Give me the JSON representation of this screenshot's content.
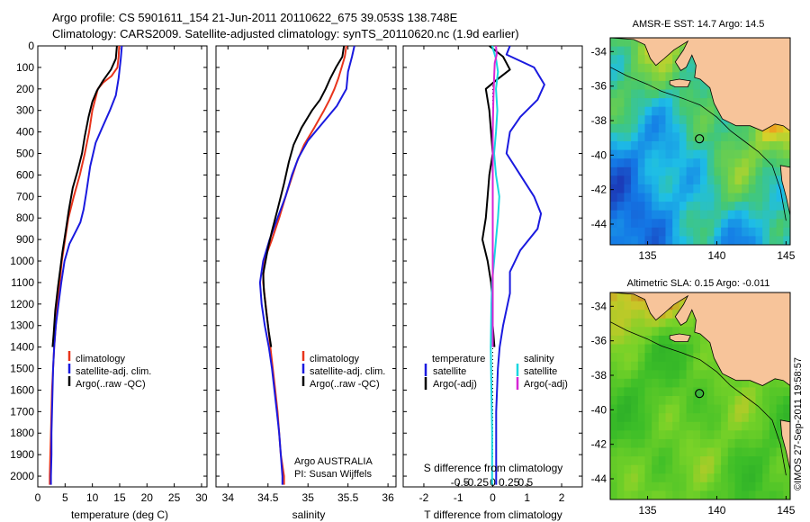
{
  "title_line1": "Argo profile: CS 5901611_154 21-Jun-2011 20110622_675 39.053S 138.748E",
  "title_line2": "Climatology: CARS2009. Satellite-adjusted climatology: synTS_20110620.nc (1.9d earlier)",
  "credit": "©IMOS 27-Sep-2011 19:58:57",
  "colors": {
    "climatology": "#e8341c",
    "satellite": "#1a1adf",
    "argo": "#000000",
    "sal_satellite": "#19d7e0",
    "sal_argo": "#d625d6",
    "land": "#f7c49a"
  },
  "chart_data": [
    {
      "type": "line",
      "xlabel": "temperature (deg C)",
      "xlim": [
        0,
        31
      ],
      "xticks": [
        "0",
        "5",
        "10",
        "15",
        "20",
        "25",
        "30"
      ],
      "xtick_values": [
        0,
        5,
        10,
        15,
        20,
        25,
        30
      ],
      "ylim": [
        0,
        2050
      ],
      "y_reversed": true,
      "yticks": [
        "0",
        "100",
        "200",
        "300",
        "400",
        "500",
        "600",
        "700",
        "800",
        "900",
        "1000",
        "1100",
        "1200",
        "1300",
        "1400",
        "1500",
        "1600",
        "1700",
        "1800",
        "1900",
        "2000"
      ],
      "ytick_values": [
        0,
        100,
        200,
        300,
        400,
        500,
        600,
        700,
        800,
        900,
        1000,
        1100,
        1200,
        1300,
        1400,
        1500,
        1600,
        1700,
        1800,
        1900,
        2000
      ],
      "legend": [
        "climatology",
        "satellite-adj. clim.",
        "Argo(..raw -QC)"
      ],
      "legend_position": "lower-middle",
      "series": [
        {
          "name": "climatology",
          "color": "climatology",
          "points": [
            [
              14.9,
              0
            ],
            [
              14.8,
              50
            ],
            [
              14.6,
              100
            ],
            [
              13.5,
              140
            ],
            [
              12.0,
              170
            ],
            [
              11.0,
              200
            ],
            [
              10.5,
              250
            ],
            [
              10.0,
              300
            ],
            [
              9.4,
              400
            ],
            [
              8.6,
              500
            ],
            [
              7.7,
              600
            ],
            [
              6.6,
              700
            ],
            [
              5.6,
              800
            ],
            [
              5.0,
              900
            ],
            [
              4.4,
              1000
            ],
            [
              4.0,
              1100
            ],
            [
              3.6,
              1200
            ],
            [
              3.3,
              1300
            ],
            [
              3.0,
              1400
            ],
            [
              2.8,
              1500
            ],
            [
              2.6,
              1600
            ],
            [
              2.5,
              1700
            ],
            [
              2.4,
              1800
            ],
            [
              2.3,
              1900
            ],
            [
              2.2,
              2000
            ],
            [
              2.2,
              2040
            ]
          ]
        },
        {
          "name": "satellite-adj. clim.",
          "color": "satellite",
          "points": [
            [
              15.4,
              0
            ],
            [
              15.2,
              60
            ],
            [
              14.8,
              150
            ],
            [
              14.3,
              230
            ],
            [
              13.2,
              300
            ],
            [
              11.8,
              380
            ],
            [
              10.6,
              450
            ],
            [
              9.6,
              560
            ],
            [
              8.9,
              680
            ],
            [
              8.4,
              760
            ],
            [
              7.8,
              820
            ],
            [
              7.0,
              860
            ],
            [
              5.8,
              920
            ],
            [
              4.9,
              1000
            ],
            [
              4.3,
              1100
            ],
            [
              3.8,
              1200
            ],
            [
              3.3,
              1300
            ],
            [
              3.0,
              1400
            ],
            [
              2.8,
              1500
            ],
            [
              2.7,
              1600
            ],
            [
              2.6,
              1700
            ],
            [
              2.5,
              1800
            ],
            [
              2.5,
              1900
            ],
            [
              2.4,
              2000
            ],
            [
              2.4,
              2040
            ]
          ]
        },
        {
          "name": "Argo(..raw -QC)",
          "color": "argo",
          "points": [
            [
              14.5,
              0
            ],
            [
              14.3,
              60
            ],
            [
              13.4,
              110
            ],
            [
              12.0,
              160
            ],
            [
              10.8,
              210
            ],
            [
              10.0,
              260
            ],
            [
              9.3,
              330
            ],
            [
              8.6,
              420
            ],
            [
              8.1,
              500
            ],
            [
              7.3,
              580
            ],
            [
              6.4,
              660
            ],
            [
              5.7,
              760
            ],
            [
              5.0,
              880
            ],
            [
              4.5,
              960
            ],
            [
              4.1,
              1040
            ],
            [
              3.7,
              1120
            ],
            [
              3.2,
              1230
            ],
            [
              2.9,
              1340
            ],
            [
              2.7,
              1400
            ]
          ]
        }
      ]
    },
    {
      "type": "line",
      "xlabel": "salinity",
      "xlim": [
        33.85,
        36.1
      ],
      "xticks": [
        "34",
        "34.5",
        "35",
        "35.5",
        "36"
      ],
      "xtick_values": [
        34,
        34.5,
        35,
        35.5,
        36
      ],
      "ylim": [
        0,
        2050
      ],
      "y_reversed": true,
      "legend": [
        "climatology",
        "satellite-adj. clim.",
        "Argo(..raw -QC)"
      ],
      "legend_position": "lower-middle",
      "annotation": [
        "Argo AUSTRALIA",
        "PI: Susan Wijffels"
      ],
      "series": [
        {
          "name": "climatology",
          "color": "climatology",
          "points": [
            [
              35.48,
              0
            ],
            [
              35.46,
              50
            ],
            [
              35.42,
              100
            ],
            [
              35.38,
              150
            ],
            [
              35.33,
              200
            ],
            [
              35.27,
              250
            ],
            [
              35.2,
              300
            ],
            [
              35.08,
              380
            ],
            [
              34.95,
              460
            ],
            [
              34.86,
              540
            ],
            [
              34.79,
              620
            ],
            [
              34.72,
              700
            ],
            [
              34.64,
              800
            ],
            [
              34.55,
              900
            ],
            [
              34.45,
              1000
            ],
            [
              34.44,
              1100
            ],
            [
              34.47,
              1200
            ],
            [
              34.5,
              1300
            ],
            [
              34.53,
              1400
            ],
            [
              34.56,
              1500
            ],
            [
              34.59,
              1600
            ],
            [
              34.62,
              1700
            ],
            [
              34.64,
              1800
            ],
            [
              34.66,
              1900
            ],
            [
              34.7,
              2000
            ],
            [
              34.7,
              2040
            ]
          ]
        },
        {
          "name": "satellite-adj. clim.",
          "color": "satellite",
          "points": [
            [
              35.58,
              0
            ],
            [
              35.55,
              50
            ],
            [
              35.5,
              120
            ],
            [
              35.48,
              200
            ],
            [
              35.36,
              280
            ],
            [
              35.18,
              360
            ],
            [
              35.0,
              440
            ],
            [
              34.88,
              520
            ],
            [
              34.8,
              600
            ],
            [
              34.72,
              700
            ],
            [
              34.62,
              800
            ],
            [
              34.52,
              900
            ],
            [
              34.44,
              1000
            ],
            [
              34.4,
              1100
            ],
            [
              34.42,
              1200
            ],
            [
              34.46,
              1300
            ],
            [
              34.51,
              1400
            ],
            [
              34.55,
              1500
            ],
            [
              34.58,
              1600
            ],
            [
              34.61,
              1700
            ],
            [
              34.64,
              1800
            ],
            [
              34.66,
              1900
            ],
            [
              34.68,
              2000
            ],
            [
              34.68,
              2040
            ]
          ]
        },
        {
          "name": "Argo(..raw -QC)",
          "color": "argo",
          "points": [
            [
              35.45,
              0
            ],
            [
              35.43,
              50
            ],
            [
              35.35,
              100
            ],
            [
              35.28,
              150
            ],
            [
              35.22,
              200
            ],
            [
              35.15,
              250
            ],
            [
              35.05,
              300
            ],
            [
              34.92,
              380
            ],
            [
              34.82,
              460
            ],
            [
              34.76,
              540
            ],
            [
              34.7,
              640
            ],
            [
              34.62,
              760
            ],
            [
              34.55,
              860
            ],
            [
              34.5,
              940
            ],
            [
              34.47,
              1000
            ],
            [
              34.44,
              1060
            ],
            [
              34.45,
              1140
            ],
            [
              34.48,
              1240
            ],
            [
              34.51,
              1330
            ],
            [
              34.54,
              1400
            ]
          ]
        }
      ]
    },
    {
      "type": "line",
      "xlabel": "T difference from climatology",
      "xlim": [
        -2.6,
        2.6
      ],
      "xticks": [
        "-2",
        "-1",
        "0",
        "1",
        "2"
      ],
      "xtick_values": [
        -2,
        -1,
        0,
        1,
        2
      ],
      "top_xlabel": "S difference from climatology",
      "top_xticks": [
        "-0.5",
        "-0.25",
        "0",
        "0.25",
        "0.5"
      ],
      "top_xtick_values": [
        -0.5,
        -0.25,
        0,
        0.25,
        0.5
      ],
      "ylim": [
        0,
        2050
      ],
      "y_reversed": true,
      "legend_temperature": [
        "temperature",
        "satellite",
        "Argo(-adj)"
      ],
      "legend_salinity": [
        "salinity",
        "satellite",
        "Argo(-adj)"
      ],
      "legend_position": "lower",
      "series": [
        {
          "name": "satellite",
          "quantity": "temperature",
          "color": "satellite",
          "points": [
            [
              0.5,
              0
            ],
            [
              0.4,
              40
            ],
            [
              1.2,
              100
            ],
            [
              1.5,
              180
            ],
            [
              1.3,
              250
            ],
            [
              0.8,
              330
            ],
            [
              0.5,
              400
            ],
            [
              0.4,
              500
            ],
            [
              0.8,
              600
            ],
            [
              1.2,
              700
            ],
            [
              1.4,
              780
            ],
            [
              1.3,
              850
            ],
            [
              0.8,
              950
            ],
            [
              0.5,
              1050
            ],
            [
              0.5,
              1150
            ],
            [
              0.3,
              1300
            ],
            [
              0.2,
              1400
            ],
            [
              0.15,
              1500
            ],
            [
              0.1,
              1700
            ],
            [
              0.1,
              1900
            ],
            [
              0.1,
              2040
            ]
          ]
        },
        {
          "name": "Argo(-adj)",
          "quantity": "temperature",
          "color": "argo",
          "points": [
            [
              -0.1,
              0
            ],
            [
              0.3,
              50
            ],
            [
              0.5,
              110
            ],
            [
              0.1,
              160
            ],
            [
              -0.2,
              200
            ],
            [
              -0.1,
              300
            ],
            [
              -0.05,
              400
            ],
            [
              0.0,
              500
            ],
            [
              -0.1,
              600
            ],
            [
              -0.15,
              700
            ],
            [
              -0.2,
              800
            ],
            [
              -0.3,
              900
            ],
            [
              -0.15,
              1000
            ],
            [
              -0.05,
              1100
            ],
            [
              0.0,
              1200
            ],
            [
              0.0,
              1300
            ],
            [
              0.05,
              1400
            ]
          ]
        },
        {
          "name": "satellite",
          "quantity": "salinity",
          "color": "sal_satellite",
          "points": [
            [
              -0.01,
              0
            ],
            [
              0.05,
              60
            ],
            [
              0.08,
              120
            ],
            [
              0.05,
              200
            ],
            [
              0.07,
              300
            ],
            [
              0.05,
              400
            ],
            [
              0.02,
              500
            ],
            [
              0.05,
              600
            ],
            [
              0.1,
              700
            ],
            [
              0.08,
              800
            ],
            [
              0.05,
              900
            ],
            [
              0.02,
              1000
            ],
            [
              -0.01,
              1100
            ],
            [
              -0.02,
              1200
            ],
            [
              -0.03,
              1400
            ],
            [
              -0.02,
              1600
            ],
            [
              -0.01,
              1800
            ],
            [
              -0.01,
              2040
            ]
          ]
        },
        {
          "name": "Argo(-adj)",
          "quantity": "salinity",
          "color": "sal_argo",
          "points": [
            [
              0.05,
              0
            ],
            [
              0.06,
              40
            ],
            [
              0.03,
              80
            ],
            [
              0.02,
              150
            ],
            [
              0.01,
              250
            ],
            [
              0.0,
              400
            ],
            [
              0.0,
              600
            ],
            [
              0.0,
              800
            ],
            [
              0.0,
              1000
            ],
            [
              0.0,
              1200
            ],
            [
              0.0,
              1400
            ]
          ]
        }
      ]
    },
    {
      "type": "heatmap",
      "title": "AMSR-E SST: 14.7 Argo: 14.5",
      "xticks": [
        "135",
        "140",
        "145"
      ],
      "xtick_values": [
        135,
        140,
        145
      ],
      "xlim": [
        132.3,
        145.3
      ],
      "yticks": [
        "-34",
        "-36",
        "-38",
        "-40",
        "-42",
        "-44"
      ],
      "ytick_values": [
        -34,
        -36,
        -38,
        -40,
        -42,
        -44
      ],
      "ylim": [
        -45.2,
        -33.2
      ],
      "float_marker": [
        138.748,
        -39.053
      ]
    },
    {
      "type": "heatmap",
      "title": "Altimetric SLA: 0.15 Argo: -0.011",
      "xticks": [
        "135",
        "140",
        "145"
      ],
      "xtick_values": [
        135,
        140,
        145
      ],
      "xlim": [
        132.3,
        145.3
      ],
      "yticks": [
        "-34",
        "-36",
        "-38",
        "-40",
        "-42",
        "-44"
      ],
      "ytick_values": [
        -34,
        -36,
        -38,
        -40,
        -42,
        -44
      ],
      "ylim": [
        -45.2,
        -33.2
      ],
      "float_marker": [
        138.748,
        -39.053
      ]
    }
  ]
}
